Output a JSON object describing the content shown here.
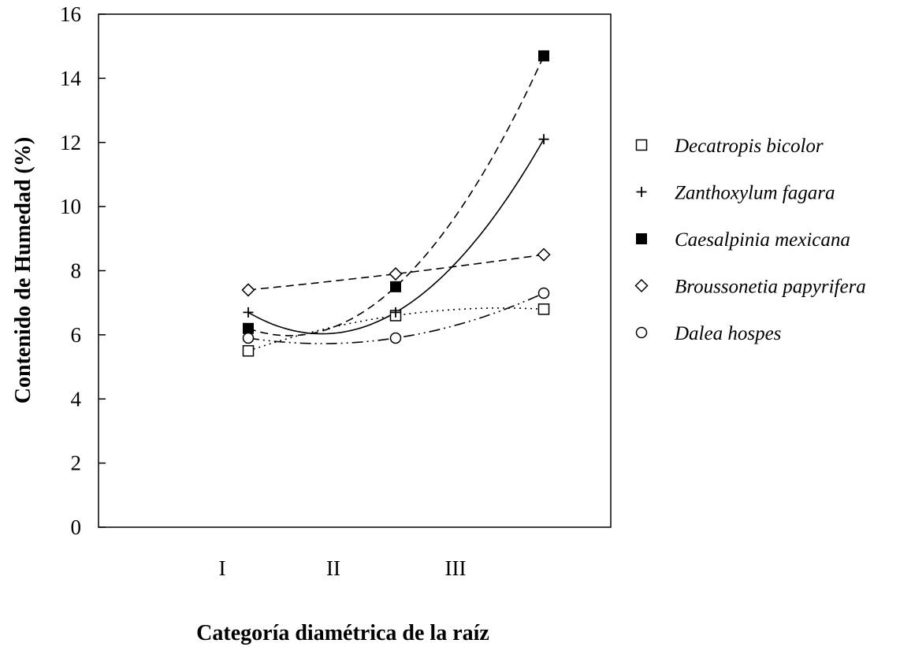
{
  "chart_data": {
    "type": "scatter",
    "xlabel": "Categoría diamétrica de la raíz",
    "ylabel": "Contenido de Humedad (%)",
    "ylim": [
      0,
      16
    ],
    "yticks": [
      0,
      2,
      4,
      6,
      8,
      10,
      12,
      14,
      16
    ],
    "xtick_labels": [
      "I",
      "II",
      "III"
    ],
    "grid": false,
    "legend_position": "right",
    "series": [
      {
        "name": "Decatropis bicolor",
        "marker": "square-open",
        "line": "dotted",
        "values": [
          5.5,
          6.6,
          6.8
        ]
      },
      {
        "name": "Zanthoxylum fagara",
        "marker": "plus",
        "line": "solid",
        "values": [
          6.7,
          6.7,
          12.1
        ]
      },
      {
        "name": "Caesalpinia mexicana",
        "marker": "square-filled",
        "line": "dashed",
        "values": [
          6.2,
          7.5,
          14.7
        ]
      },
      {
        "name": "Broussonetia papyrifera",
        "marker": "diamond-open",
        "line": "dashed",
        "values": [
          7.4,
          7.9,
          8.5
        ]
      },
      {
        "name": "Dalea hospes",
        "marker": "circle-open",
        "line": "dashdotdot",
        "values": [
          5.9,
          5.9,
          7.3
        ]
      }
    ]
  }
}
